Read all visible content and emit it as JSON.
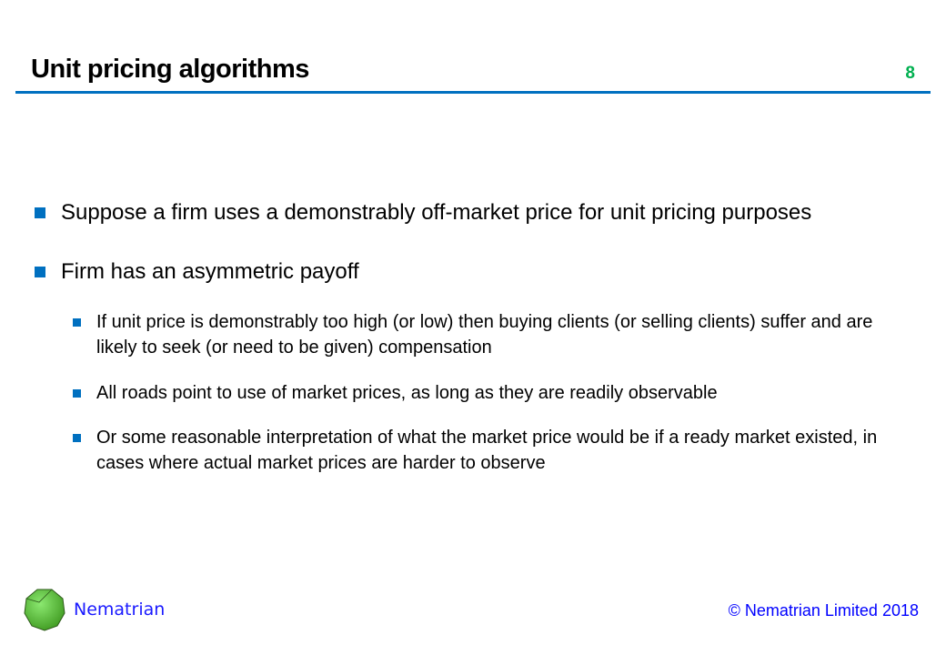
{
  "slide": {
    "title": "Unit pricing algorithms",
    "page_number": "8",
    "accent_color": "#0070c0",
    "bullets": [
      {
        "level": 1,
        "text": "Suppose a firm uses a demonstrably off-market price for unit pricing purposes"
      },
      {
        "level": 1,
        "text": "Firm has an asymmetric payoff"
      },
      {
        "level": 2,
        "text": "If unit price is demonstrably too high (or low) then buying clients (or selling clients) suffer and are likely to seek (or need to be given) compensation"
      },
      {
        "level": 2,
        "text": "All roads point to use of market prices, as long as they are readily observable"
      },
      {
        "level": 2,
        "text": "Or some reasonable interpretation of what the market price would be if a ready market existed, in cases where actual market prices are harder to observe"
      }
    ]
  },
  "footer": {
    "brand": "Nematrian",
    "logo_icon": "green-polyhedron-icon",
    "copyright": "© Nematrian Limited 2018"
  }
}
